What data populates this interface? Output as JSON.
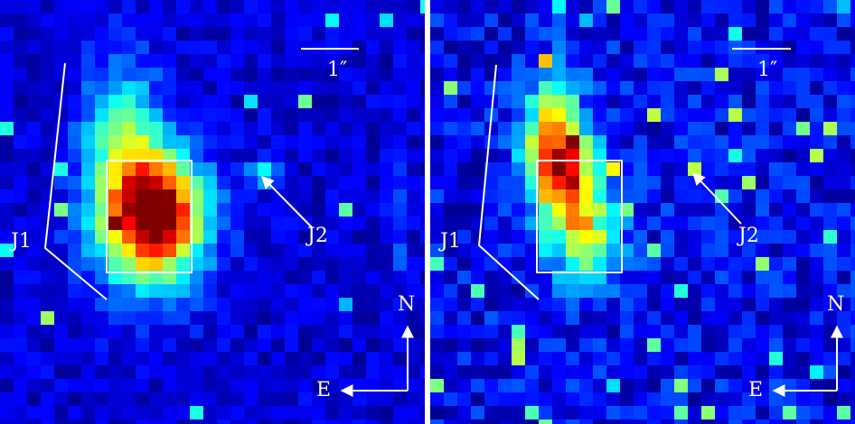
{
  "panels": [
    {
      "scale_bar": "1″",
      "labels": {
        "j1": "J1",
        "j2": "J2"
      },
      "compass": {
        "north": "N",
        "east": "E"
      }
    },
    {
      "scale_bar": "1″",
      "labels": {
        "j1": "J1",
        "j2": "J2"
      },
      "compass": {
        "north": "N",
        "east": "E"
      }
    }
  ]
}
